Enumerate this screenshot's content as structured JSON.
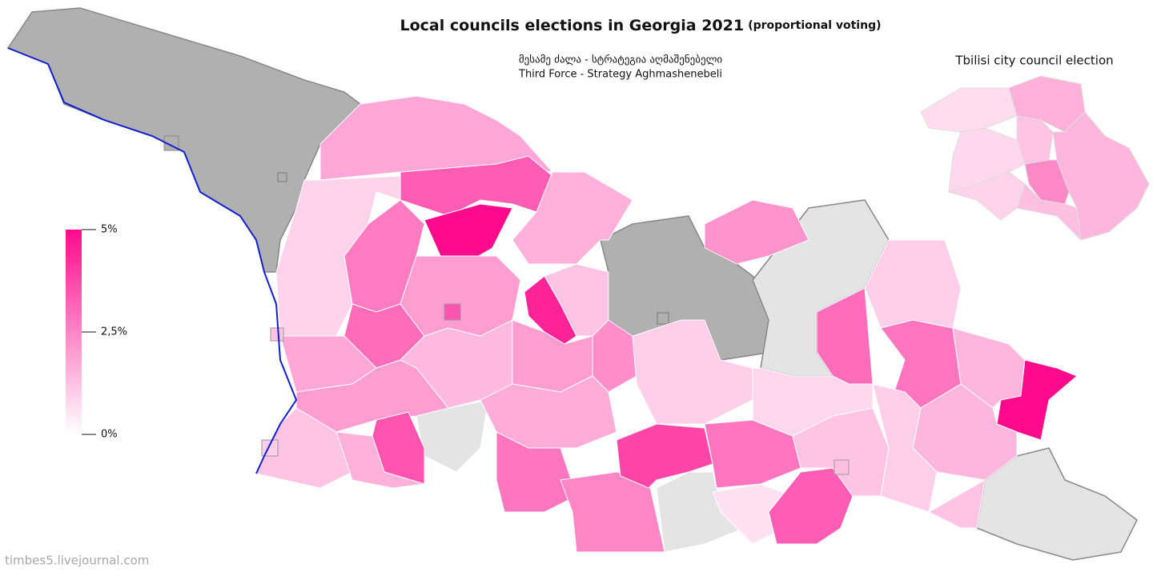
{
  "map": {
    "title": "Local councils elections in Georgia 2021",
    "title_note": "(proportional voting)",
    "subtitle": [
      "მესამე ძალა - სტრატეგია აღმაშენებელი",
      "Third Force - Strategy Aghmashenebeli"
    ],
    "inset_title": "Tbilisi city council election",
    "credit": "timbes5.livejournal.com",
    "legend": {
      "range": [
        0,
        5
      ],
      "colors": [
        "#ffffff",
        "#ff0a8c"
      ],
      "ticks": [
        {
          "value": 5,
          "label": "5%"
        },
        {
          "value": 2.5,
          "label": "2,5%"
        },
        {
          "value": 0,
          "label": "0%"
        }
      ]
    },
    "regions": [
      1.8,
      3.3,
      5,
      0.9,
      2.7,
      3.0,
      1.8,
      2.0,
      1.2,
      3.5,
      1.6,
      2.0,
      4.5,
      1.6,
      2.0,
      1.4,
      2.3,
      1.7,
      2.8,
      2.5,
      3.8,
      2.8,
      0.6,
      3.3,
      1.2,
      2.2,
      1.0,
      1.2,
      3.0,
      1.0,
      2.8,
      1.5,
      5,
      1.5,
      1.0,
      1.2,
      0.8
    ],
    "cities": [
      1.2,
      3.5,
      1.3,
      1.0
    ],
    "tbilisi_districts": [
      0.7,
      1.6,
      1.2,
      1.5,
      0.8,
      0.9,
      2.4,
      1.3
    ]
  }
}
